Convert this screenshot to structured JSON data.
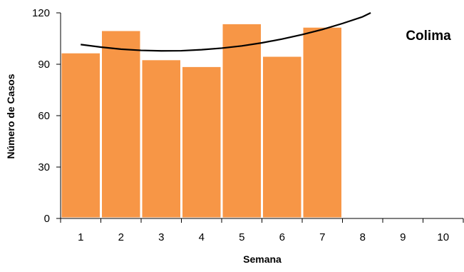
{
  "chart_data": {
    "type": "bar",
    "title": "Colima",
    "xlabel": "Semana",
    "ylabel": "Número de Casos",
    "categories": [
      "1",
      "2",
      "3",
      "4",
      "5",
      "6",
      "7",
      "8",
      "9",
      "10"
    ],
    "series": [
      {
        "values": [
          97,
          110,
          93,
          89,
          114,
          95,
          112,
          null,
          null,
          null
        ]
      }
    ],
    "trendline": {
      "type": "polynomial-2",
      "x": [
        1,
        1.5,
        2,
        2.5,
        3,
        3.5,
        4,
        4.5,
        5,
        5.5,
        6,
        6.5,
        7,
        7.5,
        8,
        8.2
      ],
      "y": [
        101.5,
        100.0,
        98.8,
        98.1,
        97.8,
        97.9,
        98.5,
        99.4,
        100.7,
        102.5,
        104.7,
        107.3,
        110.3,
        113.8,
        117.7,
        120
      ]
    },
    "ylim": [
      0,
      120
    ],
    "yticks": [
      "0",
      "30",
      "60",
      "90",
      "120"
    ],
    "grid": false,
    "legend": "none",
    "colors": {
      "bar": "#F79646",
      "bar_edge": "#ffffff",
      "axis": "#000000",
      "trendline": "#000000"
    }
  }
}
